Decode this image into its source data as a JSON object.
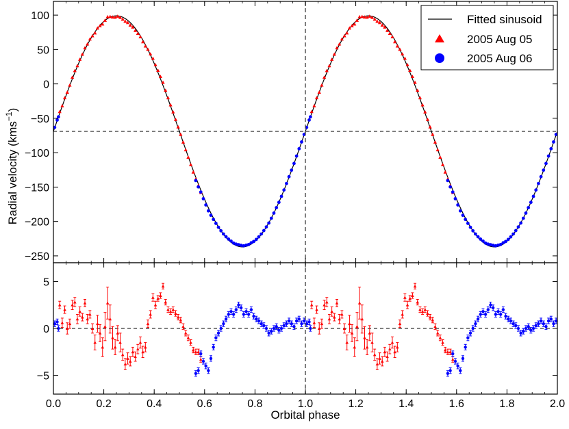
{
  "chart_data": {
    "type": "scatter",
    "xlabel": "Orbital phase",
    "ylabel": "Radial velocity (kms",
    "ylabel_superscript": "−1",
    "ylabel_close": ")",
    "xlim": [
      0.0,
      2.0
    ],
    "xticks": [
      0.0,
      0.2,
      0.4,
      0.6,
      0.8,
      1.0,
      1.2,
      1.4,
      1.6,
      1.8,
      2.0
    ],
    "xtick_labels": [
      "0.0",
      "0.2",
      "0.4",
      "0.6",
      "0.8",
      "1.0",
      "1.2",
      "1.4",
      "1.6",
      "1.8",
      "2.0"
    ],
    "top_panel": {
      "ylim": [
        -260,
        120
      ],
      "yticks": [
        100,
        50,
        0,
        -50,
        -100,
        -150,
        -200,
        -250
      ],
      "ytick_labels": [
        "100",
        "50",
        "0",
        "−50",
        "−100",
        "−150",
        "−200",
        "−250"
      ],
      "systemic_velocity": -69,
      "fit": {
        "name": "Fitted sinusoid",
        "gamma": -69,
        "amplitude": 168,
        "phase_of_max": 0.25,
        "color": "#000000"
      }
    },
    "bottom_panel": {
      "ylim": [
        -7,
        7
      ],
      "yticks": [
        5,
        0,
        -5
      ],
      "ytick_labels": [
        "5",
        "0",
        "−5"
      ],
      "zero_line": 0
    },
    "phase_marker": 1.0,
    "series": [
      {
        "name": "2005 Aug 05",
        "marker": "triangle",
        "color": "#ff0000",
        "phase_range": [
          0.0,
          0.55
        ]
      },
      {
        "name": "2005 Aug 06",
        "marker": "circle",
        "color": "#0000ff",
        "phase_range": [
          0.55,
          1.02
        ]
      }
    ],
    "residuals": {
      "red": [
        [
          0.025,
          2.5,
          0.4
        ],
        [
          0.035,
          0.6,
          0.5
        ],
        [
          0.045,
          2.0,
          0.4
        ],
        [
          0.055,
          0.0,
          0.6
        ],
        [
          0.065,
          0.5,
          0.5
        ],
        [
          0.075,
          2.5,
          0.5
        ],
        [
          0.085,
          2.8,
          0.5
        ],
        [
          0.095,
          1.0,
          0.5
        ],
        [
          0.105,
          1.8,
          0.5
        ],
        [
          0.115,
          1.2,
          0.4
        ],
        [
          0.125,
          2.7,
          0.4
        ],
        [
          0.135,
          1.0,
          0.5
        ],
        [
          0.145,
          1.5,
          0.4
        ],
        [
          0.155,
          0.0,
          0.5
        ],
        [
          0.165,
          -1.5,
          0.8
        ],
        [
          0.175,
          0.5,
          0.9
        ],
        [
          0.185,
          -0.5,
          0.9
        ],
        [
          0.195,
          -2.0,
          1.0
        ],
        [
          0.205,
          0.2,
          1.5
        ],
        [
          0.215,
          2.7,
          1.7
        ],
        [
          0.225,
          1.0,
          1.5
        ],
        [
          0.235,
          -1.0,
          1.2
        ],
        [
          0.245,
          -2.0,
          0.8
        ],
        [
          0.255,
          -0.5,
          0.8
        ],
        [
          0.265,
          -1.5,
          1.0
        ],
        [
          0.275,
          -2.8,
          0.6
        ],
        [
          0.285,
          -3.8,
          0.6
        ],
        [
          0.295,
          -3.2,
          0.6
        ],
        [
          0.305,
          -3.5,
          0.5
        ],
        [
          0.315,
          -2.5,
          0.5
        ],
        [
          0.325,
          -3.0,
          0.5
        ],
        [
          0.335,
          -2.2,
          0.5
        ],
        [
          0.345,
          -1.5,
          0.6
        ],
        [
          0.355,
          -2.5,
          0.6
        ],
        [
          0.365,
          -2.0,
          0.5
        ],
        [
          0.375,
          0.5,
          0.4
        ],
        [
          0.385,
          1.5,
          0.4
        ],
        [
          0.395,
          3.3,
          0.4
        ],
        [
          0.405,
          2.5,
          0.4
        ],
        [
          0.415,
          3.2,
          0.3
        ],
        [
          0.425,
          3.5,
          0.3
        ],
        [
          0.435,
          4.5,
          0.3
        ],
        [
          0.445,
          2.8,
          0.3
        ],
        [
          0.455,
          2.0,
          0.3
        ],
        [
          0.465,
          1.8,
          0.3
        ],
        [
          0.475,
          2.0,
          0.3
        ],
        [
          0.485,
          1.6,
          0.3
        ],
        [
          0.495,
          1.2,
          0.3
        ],
        [
          0.505,
          0.9,
          0.3
        ],
        [
          0.515,
          0.2,
          0.3
        ],
        [
          0.525,
          -0.5,
          0.3
        ],
        [
          0.535,
          -1.0,
          0.3
        ],
        [
          0.545,
          -1.5,
          0.3
        ],
        [
          0.555,
          -2.3,
          0.3
        ],
        [
          0.565,
          -2.5,
          0.3
        ],
        [
          0.575,
          -2.5,
          0.3
        ],
        [
          0.585,
          -3.3,
          0.3
        ]
      ],
      "blue": [
        [
          0.005,
          0.5,
          0.3
        ],
        [
          0.015,
          0.7,
          0.3
        ],
        [
          0.02,
          0.0,
          0.3
        ],
        [
          0.565,
          -4.8,
          0.3
        ],
        [
          0.575,
          -4.5,
          0.3
        ],
        [
          0.585,
          -2.7,
          0.3
        ],
        [
          0.595,
          -3.5,
          0.3
        ],
        [
          0.605,
          -4.0,
          0.3
        ],
        [
          0.615,
          -4.5,
          0.3
        ],
        [
          0.625,
          -3.2,
          0.3
        ],
        [
          0.635,
          -2.0,
          0.3
        ],
        [
          0.645,
          -1.0,
          0.3
        ],
        [
          0.655,
          -0.5,
          0.3
        ],
        [
          0.665,
          0.0,
          0.3
        ],
        [
          0.675,
          0.5,
          0.3
        ],
        [
          0.685,
          1.0,
          0.3
        ],
        [
          0.695,
          1.5,
          0.3
        ],
        [
          0.705,
          1.8,
          0.3
        ],
        [
          0.715,
          1.5,
          0.3
        ],
        [
          0.725,
          2.0,
          0.3
        ],
        [
          0.735,
          2.5,
          0.3
        ],
        [
          0.745,
          2.2,
          0.3
        ],
        [
          0.755,
          1.5,
          0.3
        ],
        [
          0.765,
          1.8,
          0.3
        ],
        [
          0.775,
          1.5,
          0.3
        ],
        [
          0.785,
          2.0,
          0.3
        ],
        [
          0.795,
          1.3,
          0.3
        ],
        [
          0.805,
          1.0,
          0.3
        ],
        [
          0.815,
          0.8,
          0.3
        ],
        [
          0.825,
          0.5,
          0.3
        ],
        [
          0.835,
          0.3,
          0.3
        ],
        [
          0.845,
          0.0,
          0.3
        ],
        [
          0.855,
          -0.5,
          0.3
        ],
        [
          0.865,
          -0.3,
          0.3
        ],
        [
          0.875,
          0.0,
          0.3
        ],
        [
          0.885,
          0.2,
          0.3
        ],
        [
          0.895,
          -0.2,
          0.3
        ],
        [
          0.905,
          0.0,
          0.3
        ],
        [
          0.915,
          0.3,
          0.3
        ],
        [
          0.925,
          0.5,
          0.3
        ],
        [
          0.935,
          0.8,
          0.3
        ],
        [
          0.945,
          0.5,
          0.3
        ],
        [
          0.955,
          0.2,
          0.3
        ],
        [
          0.965,
          0.8,
          0.3
        ],
        [
          0.975,
          1.0,
          0.3
        ],
        [
          0.985,
          0.5,
          0.3
        ],
        [
          0.995,
          0.8,
          0.3
        ]
      ]
    }
  }
}
